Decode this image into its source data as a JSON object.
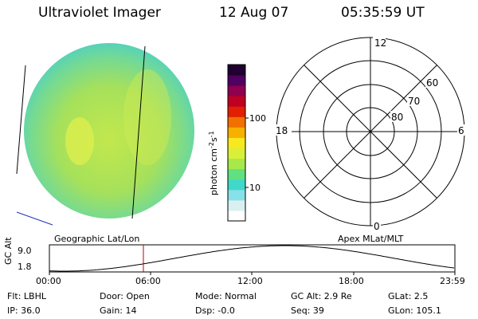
{
  "header": {
    "title": "Ultraviolet Imager",
    "date": "12 Aug 07",
    "time": "05:35:59  UT"
  },
  "colorbar": {
    "unit_label": "photon cm",
    "unit_exp1": "-2",
    "unit_mid": "s",
    "unit_exp2": "-1",
    "tick_100": "100",
    "tick_10": "10",
    "colors": [
      "#ffffff",
      "#d8f0f0",
      "#88e0e8",
      "#40d8c8",
      "#60e080",
      "#a8e848",
      "#d8f038",
      "#f8e820",
      "#f8b000",
      "#f07000",
      "#e02000",
      "#c00020",
      "#900050",
      "#500060",
      "#200030"
    ]
  },
  "polar_grid": {
    "mlt_labels": {
      "top": "12",
      "left": "18",
      "right": "6",
      "bottom": "0"
    },
    "lat_labels": [
      "60",
      "70",
      "80"
    ]
  },
  "timeline": {
    "left_caption": "Geographic Lat/Lon",
    "right_caption": "Apex  MLat/MLT",
    "y_axis_label": "GC Alt",
    "y_ticks": [
      "9.0",
      "1.8"
    ],
    "x_ticks": [
      "00:00",
      "06:00",
      "12:00",
      "18:00",
      "23:59"
    ],
    "marker_color": "#c00000"
  },
  "info": {
    "row1": [
      "Flt: LBHL",
      "Door: Open",
      "Mode: Normal",
      "GC Alt: 2.9 Re",
      "GLat:  2.5"
    ],
    "row2": [
      "IP: 36.0",
      "Gain: 14",
      "Dsp:  -0.0",
      "Seq: 39",
      "GLon: 105.1"
    ]
  }
}
